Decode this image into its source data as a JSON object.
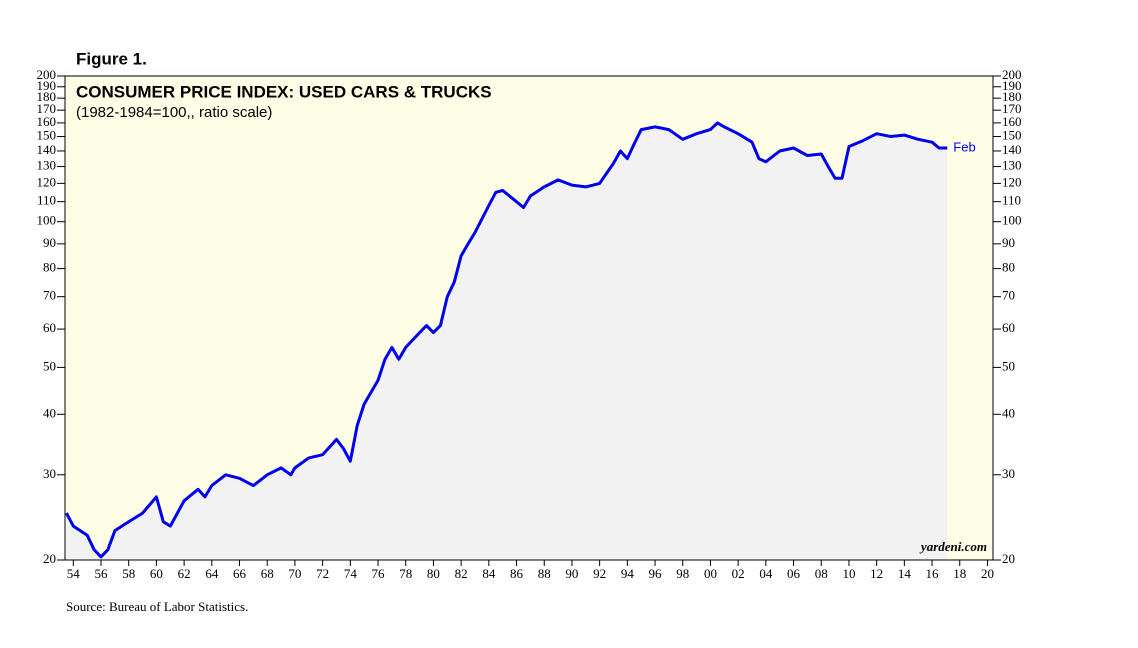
{
  "chart_data": {
    "type": "line",
    "figure_label": "Figure 1.",
    "title": "CONSUMER PRICE INDEX: USED CARS & TRUCKS",
    "subtitle": "(1982-1984=100,, ratio scale)",
    "annotation": "Feb",
    "watermark": "yardeni.com",
    "source": "Source: Bureau of Labor Statistics.",
    "log_scale": true,
    "area_fill": "#f2f2f2",
    "plot_background": "#fefde6",
    "x": [
      1953.5,
      1954,
      1955,
      1955.5,
      1956,
      1956.5,
      1957,
      1958,
      1959,
      1960,
      1960.5,
      1961,
      1962,
      1963,
      1963.5,
      1964,
      1965,
      1966,
      1966.5,
      1967,
      1968,
      1969,
      1969.7,
      1970,
      1971,
      1972,
      1973,
      1973.5,
      1974,
      1974.5,
      1975,
      1976,
      1976.5,
      1977,
      1977.5,
      1978,
      1979,
      1979.5,
      1980,
      1980.5,
      1981,
      1981.5,
      1982,
      1982.5,
      1983,
      1984,
      1984.5,
      1985,
      1986,
      1986.5,
      1987,
      1988,
      1989,
      1990,
      1991,
      1992,
      1993,
      1993.5,
      1994,
      1994.5,
      1995,
      1996,
      1997,
      1998,
      1999,
      2000,
      2000.5,
      2001,
      2002,
      2003,
      2003.5,
      2004,
      2005,
      2006,
      2007,
      2008,
      2008.5,
      2009,
      2009.5,
      2010,
      2011,
      2012,
      2013,
      2014,
      2015,
      2016,
      2016.5,
      2017.1
    ],
    "series": [
      {
        "name": "CPI: Used Cars & Trucks",
        "color": "#0000ee",
        "values": [
          25,
          23.5,
          22.5,
          21,
          20.3,
          21,
          23,
          24,
          25,
          27,
          24,
          23.5,
          26.5,
          28,
          27,
          28.5,
          30,
          29.5,
          29,
          28.5,
          30,
          31,
          30,
          31,
          32.5,
          33,
          35.5,
          34,
          32,
          38,
          42,
          47,
          52,
          55,
          52,
          55,
          59,
          61,
          59,
          61,
          70,
          75,
          85,
          90,
          95,
          108,
          115,
          116,
          110,
          107,
          113,
          118,
          122,
          119,
          118,
          120,
          132,
          140,
          135,
          145,
          155,
          157,
          155,
          148,
          152,
          155,
          160,
          157,
          152,
          146,
          135,
          133,
          140,
          142,
          137,
          138,
          130,
          123,
          123,
          143,
          147,
          152,
          150,
          151,
          148,
          146,
          142,
          142
        ]
      }
    ],
    "xlim": [
      1953.4,
      2020.4
    ],
    "xticks": [
      {
        "value": 1954,
        "label": "54"
      },
      {
        "value": 1956,
        "label": "56"
      },
      {
        "value": 1958,
        "label": "58"
      },
      {
        "value": 1960,
        "label": "60"
      },
      {
        "value": 1962,
        "label": "62"
      },
      {
        "value": 1964,
        "label": "64"
      },
      {
        "value": 1966,
        "label": "66"
      },
      {
        "value": 1968,
        "label": "68"
      },
      {
        "value": 1970,
        "label": "70"
      },
      {
        "value": 1972,
        "label": "72"
      },
      {
        "value": 1974,
        "label": "74"
      },
      {
        "value": 1976,
        "label": "76"
      },
      {
        "value": 1978,
        "label": "78"
      },
      {
        "value": 1980,
        "label": "80"
      },
      {
        "value": 1982,
        "label": "82"
      },
      {
        "value": 1984,
        "label": "84"
      },
      {
        "value": 1986,
        "label": "86"
      },
      {
        "value": 1988,
        "label": "88"
      },
      {
        "value": 1990,
        "label": "90"
      },
      {
        "value": 1992,
        "label": "92"
      },
      {
        "value": 1994,
        "label": "94"
      },
      {
        "value": 1996,
        "label": "96"
      },
      {
        "value": 1998,
        "label": "98"
      },
      {
        "value": 2000,
        "label": "00"
      },
      {
        "value": 2002,
        "label": "02"
      },
      {
        "value": 2004,
        "label": "04"
      },
      {
        "value": 2006,
        "label": "06"
      },
      {
        "value": 2008,
        "label": "08"
      },
      {
        "value": 2010,
        "label": "10"
      },
      {
        "value": 2012,
        "label": "12"
      },
      {
        "value": 2014,
        "label": "14"
      },
      {
        "value": 2016,
        "label": "16"
      },
      {
        "value": 2018,
        "label": "18"
      },
      {
        "value": 2020,
        "label": "20"
      }
    ],
    "ylim": [
      20,
      200
    ],
    "yticks": [
      20,
      30,
      40,
      50,
      60,
      70,
      80,
      90,
      100,
      110,
      120,
      130,
      140,
      150,
      160,
      170,
      180,
      190,
      200
    ]
  }
}
